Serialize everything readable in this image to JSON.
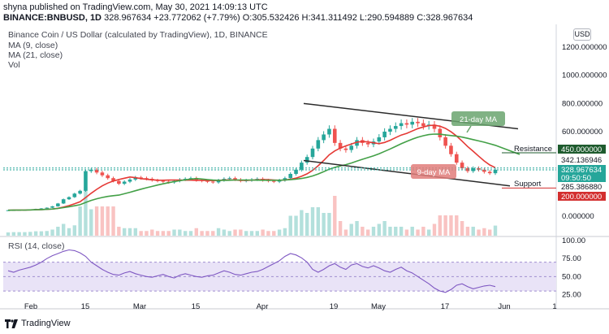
{
  "header": {
    "line1": "shyna published on TradingView.com, May 30, 2021 14:09:13 UTC",
    "symbol": "BINANCE:BNBUSD, 1D",
    "last": "328.967634",
    "change": "+23.772062 (+7.79%)",
    "ohlc": "O:305.532426 H:341.311492 L:290.594889 C:328.967634"
  },
  "overlay": {
    "title": "Binance Coin / US Dollar (calculated by TradingView), 1D, BINANCE",
    "ma9": "MA (9, close)",
    "ma21": "MA (21, close)",
    "vol": "Vol",
    "rsi": "RSI (14, close)"
  },
  "currency": "USD",
  "footer": {
    "logo": "TradingView"
  },
  "annotations": {
    "ma21_label": "21-day MA",
    "ma9_label": "9-day MA",
    "resistance": "Resistance",
    "support": "Support"
  },
  "price_axis": {
    "ticks": [
      "1200.000000",
      "1000.000000",
      "800.000000",
      "600.000000",
      "0.000000"
    ],
    "tick_values": [
      1200,
      1000,
      800,
      600,
      0
    ],
    "badges": [
      {
        "text": "450.000000",
        "value": 450,
        "bg": "#1e5b2e",
        "fg": "#ffffff"
      },
      {
        "text": "342.136946",
        "value": 342,
        "bg": "#ffffff",
        "fg": "#131722"
      },
      {
        "text": "328.967634",
        "value": 329,
        "bg": "#26a69a",
        "fg": "#ffffff"
      },
      {
        "text": "09:50:50",
        "value": 304,
        "bg": "#26a69a",
        "fg": "#ffffff"
      },
      {
        "text": "285.386880",
        "value": 285,
        "bg": "#ffffff",
        "fg": "#131722"
      },
      {
        "text": "200.000000",
        "value": 200,
        "bg": "#d32f2f",
        "fg": "#ffffff"
      }
    ]
  },
  "rsi_axis": {
    "ticks": [
      "100.00",
      "75.00",
      "50.00",
      "25.00"
    ],
    "tick_values": [
      100,
      75,
      50,
      25
    ]
  },
  "x_axis": {
    "labels": [
      "Feb",
      "15",
      "Mar",
      "15",
      "Apr",
      "19",
      "May",
      "17",
      "Jun",
      "1"
    ]
  },
  "colors": {
    "up": "#26a69a",
    "down": "#ef5350",
    "ma9": "#e53935",
    "ma21": "#43a047",
    "rsi": "#7e57c2",
    "rsi_band": "#e9e3f7",
    "channel": "#2b2b2b"
  },
  "chart_data": {
    "type": "candlestick",
    "title": "Binance Coin / US Dollar (calculated by TradingView), 1D, BINANCE",
    "x_labels": [
      "Feb",
      "15",
      "Mar",
      "15",
      "Apr",
      "19",
      "May",
      "17",
      "Jun",
      "1"
    ],
    "y_ticks": [
      1200,
      1000,
      800,
      600,
      0
    ],
    "close_series": {
      "name": "close",
      "values": [
        42,
        43,
        44,
        45,
        47,
        51,
        55,
        60,
        70,
        90,
        120,
        135,
        160,
        180,
        320,
        330,
        310,
        290,
        270,
        250,
        230,
        245,
        260,
        275,
        270,
        265,
        255,
        250,
        245,
        240,
        250,
        260,
        265,
        270,
        255,
        250,
        245,
        240,
        255,
        265,
        270,
        260,
        250,
        255,
        260,
        265,
        255,
        250,
        245,
        255,
        270,
        300,
        330,
        380,
        420,
        480,
        540,
        580,
        620,
        520,
        480,
        470,
        500,
        540,
        520,
        510,
        530,
        560,
        600,
        620,
        640,
        660,
        650,
        670,
        660,
        640,
        650,
        620,
        560,
        500,
        440,
        380,
        340,
        320,
        340,
        330,
        315,
        305,
        329
      ]
    },
    "resistance_line": [
      {
        "x": "Apr 3",
        "y": 800
      },
      {
        "x": "Jun 1",
        "y": 620
      }
    ],
    "support_line": [
      {
        "x": "Apr 3",
        "y": 395
      },
      {
        "x": "Jun 1",
        "y": 215
      }
    ],
    "horizontal_levels": [
      450,
      200
    ],
    "rsi": {
      "ticks": [
        100,
        75,
        50,
        25
      ],
      "band": [
        30,
        70
      ],
      "values": [
        58,
        56,
        59,
        61,
        63,
        66,
        70,
        75,
        79,
        82,
        85,
        87,
        86,
        83,
        78,
        70,
        65,
        60,
        56,
        53,
        52,
        55,
        57,
        54,
        52,
        50,
        49,
        51,
        53,
        50,
        48,
        52,
        54,
        52,
        50,
        49,
        51,
        52,
        55,
        58,
        56,
        53,
        52,
        54,
        56,
        57,
        60,
        64,
        68,
        72,
        78,
        82,
        80,
        76,
        70,
        60,
        56,
        60,
        65,
        68,
        63,
        60,
        66,
        68,
        64,
        62,
        65,
        62,
        58,
        56,
        60,
        63,
        58,
        55,
        50,
        45,
        40,
        34,
        30,
        28,
        32,
        38,
        40,
        36,
        33,
        35,
        37,
        38,
        36
      ]
    }
  }
}
